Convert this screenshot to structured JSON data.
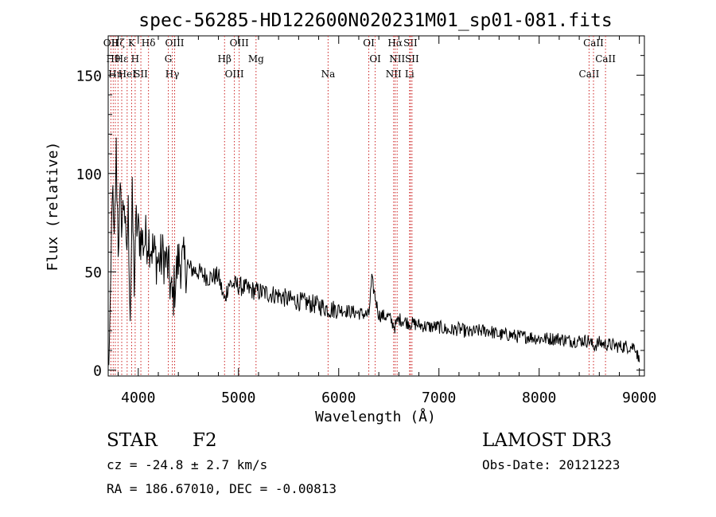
{
  "chart_data": {
    "type": "line",
    "title": "spec-56285-HD122600N020231M01_sp01-081.fits",
    "xlabel": "Wavelength (Å)",
    "ylabel": "Flux (relative)",
    "xlim": [
      3700,
      9050
    ],
    "ylim": [
      -3,
      170
    ],
    "xticks": [
      4000,
      5000,
      6000,
      7000,
      8000,
      9000
    ],
    "yticks": [
      0,
      50,
      100,
      150
    ],
    "series": [
      {
        "name": "flux",
        "x": [
          3700,
          3720,
          3740,
          3760,
          3780,
          3800,
          3820,
          3840,
          3860,
          3880,
          3900,
          3920,
          3940,
          3960,
          3980,
          4000,
          4050,
          4100,
          4150,
          4200,
          4250,
          4300,
          4340,
          4400,
          4500,
          4600,
          4700,
          4800,
          4860,
          4900,
          5000,
          5100,
          5200,
          5300,
          5400,
          5500,
          5600,
          5700,
          5800,
          5900,
          6000,
          6100,
          6200,
          6300,
          6330,
          6400,
          6500,
          6560,
          6600,
          6700,
          6800,
          6900,
          7000,
          7100,
          7200,
          7300,
          7400,
          7500,
          7600,
          7700,
          7800,
          7900,
          8000,
          8100,
          8200,
          8300,
          8400,
          8500,
          8540,
          8600,
          8660,
          8700,
          8800,
          8900,
          8960,
          9000
        ],
        "y": [
          2,
          20,
          95,
          60,
          110,
          65,
          85,
          75,
          90,
          55,
          80,
          30,
          85,
          45,
          75,
          70,
          65,
          68,
          60,
          55,
          58,
          52,
          35,
          56,
          52,
          50,
          47,
          48,
          35,
          44,
          43,
          41,
          40,
          39,
          38,
          36,
          35,
          34,
          33,
          31,
          31,
          30,
          29,
          28,
          46,
          28,
          27,
          22,
          26,
          24,
          23,
          22,
          22,
          20,
          21,
          19,
          20,
          20,
          18,
          18,
          17,
          17,
          16,
          16,
          16,
          15,
          15,
          15,
          12,
          14,
          13,
          13,
          12,
          12,
          12,
          4
        ]
      }
    ],
    "line_markers": [
      {
        "label": "OII",
        "wavelength": 3727
      },
      {
        "label": "Hθ",
        "wavelength": 3750
      },
      {
        "label": "Hη",
        "wavelength": 3771
      },
      {
        "label": "Hζ",
        "wavelength": 3798
      },
      {
        "label": "Hε",
        "wavelength": 3835
      },
      {
        "label": "HeI",
        "wavelength": 3889
      },
      {
        "label": "K",
        "wavelength": 3934
      },
      {
        "label": "H",
        "wavelength": 3969
      },
      {
        "label": "SII",
        "wavelength": 4026
      },
      {
        "label": "Hδ",
        "wavelength": 4102
      },
      {
        "label": "G",
        "wavelength": 4300
      },
      {
        "label": "Hγ",
        "wavelength": 4340
      },
      {
        "label": "OIII",
        "wavelength": 4363
      },
      {
        "label": "Hβ",
        "wavelength": 4861
      },
      {
        "label": "OIII",
        "wavelength": 4959
      },
      {
        "label": "OIII",
        "wavelength": 5007
      },
      {
        "label": "Mg",
        "wavelength": 5175
      },
      {
        "label": "Na",
        "wavelength": 5894
      },
      {
        "label": "OI",
        "wavelength": 6300
      },
      {
        "label": "OI",
        "wavelength": 6364
      },
      {
        "label": "NII",
        "wavelength": 6548
      },
      {
        "label": "Hα",
        "wavelength": 6563
      },
      {
        "label": "NII",
        "wavelength": 6583
      },
      {
        "label": "Li",
        "wavelength": 6707
      },
      {
        "label": "SII",
        "wavelength": 6716
      },
      {
        "label": "SII",
        "wavelength": 6731
      },
      {
        "label": "CaII",
        "wavelength": 8498
      },
      {
        "label": "CaII",
        "wavelength": 8542
      },
      {
        "label": "CaII",
        "wavelength": 8662
      }
    ]
  },
  "info": {
    "object_class": "STAR",
    "subclass": "F2",
    "survey": "LAMOST DR3",
    "cz": "cz = -24.8 ± 2.7 km/s",
    "obs_date": "Obs-Date: 20121223",
    "radec": "RA = 186.67010, DEC =  -0.00813"
  }
}
